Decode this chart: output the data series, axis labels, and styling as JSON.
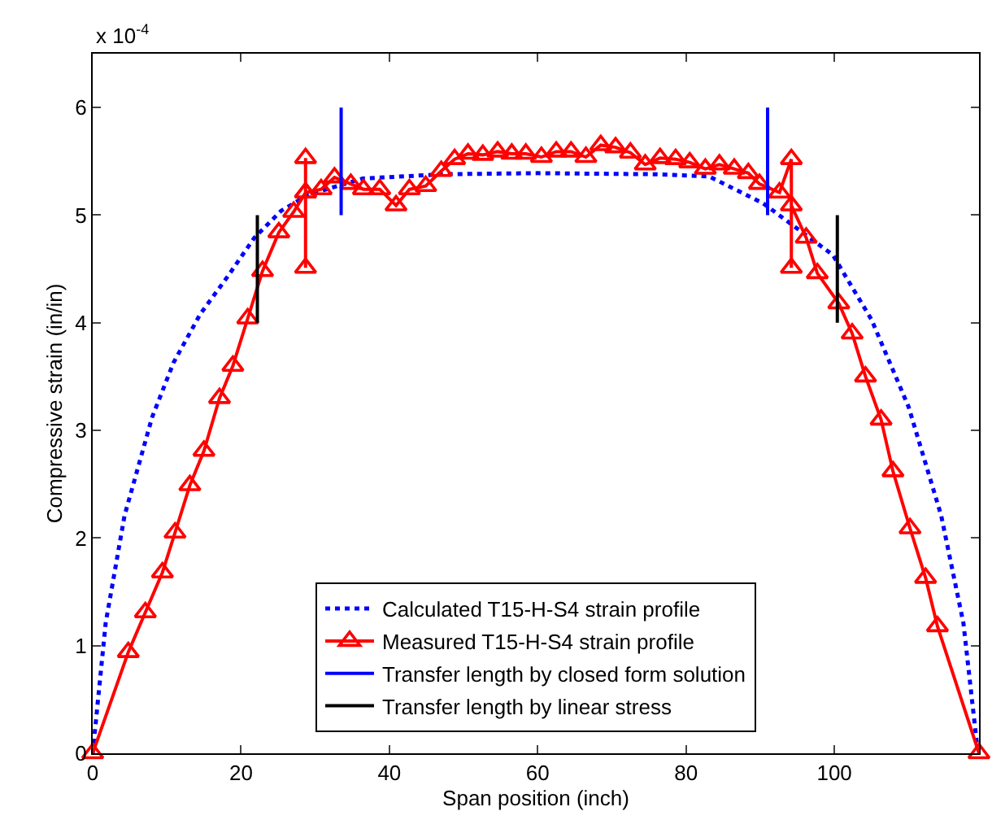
{
  "chart_data": {
    "type": "line",
    "xlabel": "Span position (inch)",
    "ylabel": "Compressive strain (in/in)",
    "annotations": [
      "x 10$^{-4}$"
    ],
    "xlim": [
      0,
      119.5
    ],
    "ylim": [
      0,
      6.5
    ],
    "xticks": [
      0,
      20,
      40,
      60,
      80,
      100
    ],
    "yticks": [
      0,
      1,
      2,
      3,
      4,
      5,
      6
    ],
    "grid": false,
    "legend": "bottom",
    "series": [
      {
        "name": "Calculated T15-H-S4 strain profile",
        "color": "#0000ff",
        "line_style": "dotted",
        "marker": "none",
        "x": [
          0,
          1.75,
          4.3,
          8,
          10.9,
          14.5,
          18.2,
          21.8,
          25.4,
          29.1,
          36.4,
          47.3,
          60,
          75.7,
          83.1,
          90.4,
          99.8,
          105,
          110,
          114.4,
          117.4,
          119.2
        ],
        "values": [
          0,
          1.21,
          2.21,
          3.12,
          3.63,
          4.08,
          4.43,
          4.79,
          5.04,
          5.19,
          5.34,
          5.38,
          5.39,
          5.38,
          5.36,
          5.11,
          4.63,
          4.03,
          3.22,
          2.21,
          1.21,
          0.1
        ]
      },
      {
        "name": "Measured T15-H-S4 strain profile",
        "color": "#ff0000",
        "line_style": "solid",
        "marker": "triangle",
        "x": [
          0,
          4.8,
          7.1,
          9.4,
          11.1,
          13.1,
          15,
          17.1,
          18.9,
          20.9,
          22.9,
          25.1,
          27.1,
          28.7,
          28.7,
          28.7,
          28.7,
          30.8,
          32.6,
          34.8,
          36.5,
          38.7,
          40.9,
          42.7,
          44.9,
          47,
          48.8,
          50.6,
          52.6,
          54.6,
          56.5,
          58.4,
          60.5,
          62.5,
          64.5,
          66.5,
          68.5,
          70.5,
          72.5,
          74.5,
          76.5,
          78.6,
          80.5,
          82.6,
          84.5,
          86.5,
          88.4,
          89.9,
          92.6,
          94.2,
          94.2,
          94.2,
          96.2,
          97.7,
          100.6,
          102.4,
          104.2,
          106.3,
          107.9,
          110.2,
          112.3,
          113.9,
          119.5
        ],
        "values": [
          0,
          0.94,
          1.31,
          1.68,
          2.05,
          2.49,
          2.81,
          3.3,
          3.6,
          4.04,
          4.48,
          4.84,
          5.03,
          5.21,
          4.51,
          5.53,
          5.21,
          5.24,
          5.35,
          5.29,
          5.24,
          5.24,
          5.09,
          5.24,
          5.27,
          5.41,
          5.52,
          5.57,
          5.56,
          5.59,
          5.57,
          5.57,
          5.54,
          5.59,
          5.59,
          5.54,
          5.65,
          5.63,
          5.58,
          5.47,
          5.53,
          5.52,
          5.49,
          5.43,
          5.47,
          5.43,
          5.39,
          5.29,
          5.21,
          5.52,
          4.51,
          5.09,
          4.79,
          4.46,
          4.18,
          3.9,
          3.5,
          3.1,
          2.62,
          2.09,
          1.63,
          1.18,
          0
        ]
      },
      {
        "name": "Transfer length by closed form solution",
        "color": "#0000ff",
        "line_style": "solid",
        "marker": "none",
        "x": [
          33.5,
          33.5,
          null,
          91,
          91
        ],
        "values": [
          5,
          6,
          null,
          5,
          6
        ]
      },
      {
        "name": "Transfer length by linear stress",
        "color": "#000000",
        "line_style": "solid",
        "marker": "none",
        "x": [
          22.2,
          22.2,
          null,
          100.4,
          100.4
        ],
        "values": [
          4,
          5,
          null,
          4,
          5
        ]
      }
    ]
  }
}
